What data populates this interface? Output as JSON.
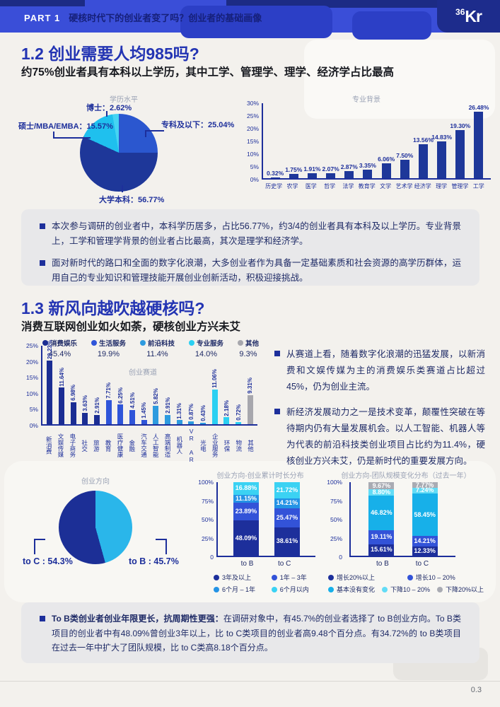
{
  "header": {
    "part": "PART 1",
    "title": "硬核时代下的创业者变了吗？创业者的基础画像",
    "logo_sup": "36",
    "logo_main": "Kr"
  },
  "section12": {
    "title": "1.2 创业需要人均985吗?",
    "subtitle": "约75%创业者具有本科以上学历，其中工学、管理学、理学、经济学占比最高",
    "bullets": [
      "本次参与调研的创业者中，本科学历居多，占比56.77%，约3/4的创业者具有本科及以上学历。专业背景上，工学和管理学背景的创业者占比最高，其次是理学和经济学。",
      "面对新时代的路口和全面的数字化浪潮，大多创业者作为具备一定基础素质和社会资源的高学历群体，运用自己的专业知识和管理技能开展创业创新活动，积极迎接挑战。"
    ]
  },
  "section13": {
    "title": "1.3 新风向越吹越硬核吗?",
    "subtitle": "消费互联网创业如火如荼，硬核创业方兴未艾",
    "bullets": [
      "从赛道上看，随着数字化浪潮的迅猛发展，以新消费和文娱传媒为主的消费娱乐类赛道占比超过45%，仍为创业主流。",
      "新经济发展动力之一是技术变革，颠覆性突破在等待期内仍有大量发展机会。以人工智能、机器人等为代表的前沿科技类创业项目占比约为11.4%，硬核创业方兴未艾，仍是新时代的重要发展方向。"
    ],
    "bottom": {
      "lead": "To B类创业者创业年限更长，抗周期性更强：",
      "text": "在调研对象中，有45.7%的创业者选择了 to B创业方向。To B类项目的创业者中有48.09%曾创业3年以上，比 to C类项目的创业者高9.48个百分点。有34.72%的 to B类项目在过去一年中扩大了团队规模，比 to C类高8.18个百分点。"
    }
  },
  "footer": {
    "page": "0.3"
  },
  "chart_data": [
    {
      "id": "edu-pie",
      "type": "pie",
      "title": "学历水平",
      "slices": [
        {
          "label": "专科及以下",
          "value": 25.04,
          "color": "#2b57cf",
          "display": "专科及以下：25.04%"
        },
        {
          "label": "大学本科",
          "value": 56.77,
          "color": "#1e3799",
          "display": "大学本科：56.77%"
        },
        {
          "label": "硕士/MBA/EMBA",
          "value": 15.57,
          "color": "#1fc0ee",
          "display": "硕士/MBA/EMBA：15.57%"
        },
        {
          "label": "博士",
          "value": 2.62,
          "color": "#45d4f3",
          "display": "博士：2.62%"
        }
      ]
    },
    {
      "id": "major-bar",
      "type": "bar",
      "title": "专业背景",
      "ylim": [
        0,
        30
      ],
      "ylabels": [
        "30%",
        "25%",
        "20%",
        "15%",
        "10%",
        "5%",
        "0%"
      ],
      "bar_color": "#1e3799",
      "bars": [
        {
          "label": "历史学",
          "value": 0.32
        },
        {
          "label": "农学",
          "value": 1.75
        },
        {
          "label": "医学",
          "value": 1.91
        },
        {
          "label": "哲学",
          "value": 2.07
        },
        {
          "label": "法学",
          "value": 2.87
        },
        {
          "label": "教育学",
          "value": 3.35
        },
        {
          "label": "文学",
          "value": 6.06
        },
        {
          "label": "艺术学",
          "value": 7.5
        },
        {
          "label": "经济学",
          "value": 13.56
        },
        {
          "label": "理学",
          "value": 14.83
        },
        {
          "label": "管理学",
          "value": 19.3
        },
        {
          "label": "工学",
          "value": 26.48
        }
      ]
    },
    {
      "id": "track-bar",
      "type": "vbar",
      "title": "创业赛道",
      "ylim": [
        0,
        25
      ],
      "ylabels": [
        "25%",
        "20%",
        "15%",
        "10%",
        "5%",
        "0%"
      ],
      "vertical_labels": true,
      "legend": [
        {
          "name": "消费娱乐",
          "pct": "45.4%",
          "color": "#1b2d93"
        },
        {
          "name": "生活服务",
          "pct": "19.9%",
          "color": "#2f55d9"
        },
        {
          "name": "前沿科技",
          "pct": "11.4%",
          "color": "#2e9bdf"
        },
        {
          "name": "专业服务",
          "pct": "14.0%",
          "color": "#2bd0f2"
        },
        {
          "name": "其他",
          "pct": "9.3%",
          "color": "#a7a7ad"
        }
      ],
      "bars": [
        {
          "label": "新消费",
          "value": 20.23,
          "group": 0
        },
        {
          "label": "文娱传媒",
          "value": 11.64,
          "group": 0
        },
        {
          "label": "电子商务",
          "value": 6.98,
          "group": 0
        },
        {
          "label": "社交",
          "value": 3.63,
          "group": 0
        },
        {
          "label": "旅游",
          "value": 2.91,
          "group": 0
        },
        {
          "label": "教育",
          "value": 7.71,
          "group": 1
        },
        {
          "label": "医疗健康",
          "value": 6.25,
          "group": 1
        },
        {
          "label": "金融",
          "value": 4.51,
          "group": 1
        },
        {
          "label": "汽车交通",
          "value": 1.45,
          "group": 1
        },
        {
          "label": "人工智能",
          "value": 5.82,
          "group": 2
        },
        {
          "label": "高端制造",
          "value": 2.91,
          "group": 2
        },
        {
          "label": "机器人",
          "value": 1.31,
          "group": 2
        },
        {
          "label": "VR AR",
          "value": 0.87,
          "group": 2
        },
        {
          "label": "光电",
          "value": 0.43,
          "group": 2
        },
        {
          "label": "企业服务",
          "value": 11.06,
          "group": 3
        },
        {
          "label": "环保",
          "value": 2.18,
          "group": 3
        },
        {
          "label": "物流",
          "value": 0.72,
          "group": 3
        },
        {
          "label": "其他",
          "value": 9.31,
          "group": 4
        }
      ]
    },
    {
      "id": "dir-pie",
      "type": "pie",
      "title": "创业方向",
      "slices": [
        {
          "label": "to B",
          "value": 45.7,
          "color": "#2ab6ea",
          "display": "to B : 45.7%"
        },
        {
          "label": "to C",
          "value": 54.3,
          "color": "#1c2f96",
          "display": "to C : 54.3%"
        }
      ]
    },
    {
      "id": "duration-stack",
      "type": "stacked",
      "title": "创业方向-创业累计时长分布",
      "categories": [
        "to B",
        "to C"
      ],
      "ylabels": [
        "100%",
        "75%",
        "50%",
        "25%",
        "0"
      ],
      "series": [
        {
          "name": "3年及以上",
          "color": "#1d2f9b",
          "values": [
            48.09,
            38.61
          ]
        },
        {
          "name": "1年 – 3年",
          "color": "#3353d8",
          "values": [
            23.89,
            25.47
          ]
        },
        {
          "name": "6个月 – 1年",
          "color": "#2493e5",
          "values": [
            11.15,
            14.21
          ]
        },
        {
          "name": "6个月以内",
          "color": "#3bd2f3",
          "values": [
            16.88,
            21.72
          ]
        }
      ]
    },
    {
      "id": "team-stack",
      "type": "stacked",
      "title": "创业方向-团队规模变化分布（过去一年）",
      "categories": [
        "to B",
        "to C"
      ],
      "ylabels": [
        "100%",
        "75%",
        "50%",
        "25%",
        "0"
      ],
      "series": [
        {
          "name": "增长20%以上",
          "color": "#1d2f9b",
          "values": [
            15.61,
            12.33
          ]
        },
        {
          "name": "增长10 – 20%",
          "color": "#3353d8",
          "values": [
            19.11,
            14.21
          ]
        },
        {
          "name": "基本没有变化",
          "color": "#17b0e9",
          "values": [
            46.82,
            58.45
          ]
        },
        {
          "name": "下降10 – 20%",
          "color": "#63dcf6",
          "values": [
            8.8,
            7.24
          ]
        },
        {
          "name": "下降20%以上",
          "color": "#a9abb3",
          "values": [
            9.67,
            7.77
          ]
        }
      ]
    }
  ]
}
